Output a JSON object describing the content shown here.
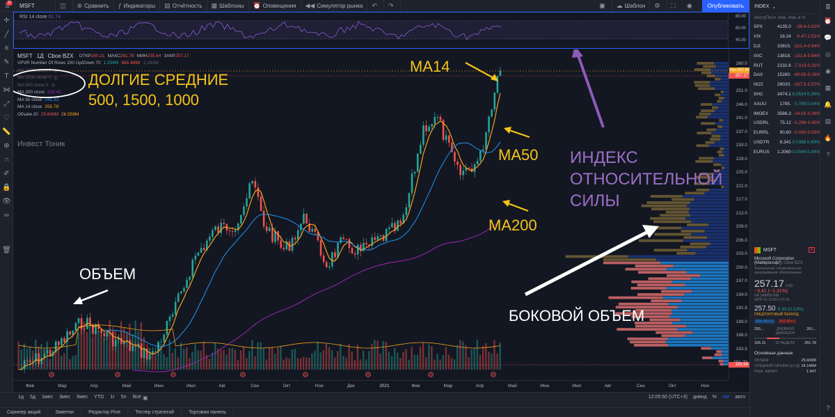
{
  "topbar": {
    "notif_count": "11",
    "symbol": "MSFT",
    "compare": "Сравнить",
    "indicators": "Индикаторы",
    "report": "Отчётность",
    "templates": "Шаблоны",
    "alerts": "Оповещения",
    "replay": "Симулятор рынка",
    "template_name": "Шаблон",
    "publish": "Опубликовать"
  },
  "rsi": {
    "label": "RSI 14 close",
    "value": "61.74",
    "ticks": [
      "80.00",
      "60.00",
      "40.00"
    ]
  },
  "legend": {
    "symbol": "MSFT",
    "interval": "1Д",
    "exchange": "Cboe BZX",
    "ohlc": [
      {
        "k": "ОТКР",
        "v": "260.21"
      },
      {
        "k": "МАКС",
        "v": "261.78"
      },
      {
        "k": "МИН",
        "v": "255.64"
      },
      {
        "k": "ЗАКР",
        "v": "257.17"
      }
    ],
    "vpvr": "VPVR Number Of Rows 100 Up/Down 70",
    "vpvr_values": [
      "1.254M",
      "988.489K",
      "2.243M"
    ],
    "ma_hidden": [
      "MA 1500 close 0",
      "MA 1000 close 0",
      "MA 500 close 0"
    ],
    "ma200": {
      "label": "MA 200 close",
      "value": "219.40"
    },
    "ma50": {
      "label": "MA 50 close",
      "value": "241.33"
    },
    "ma14": {
      "label": "MA 14 close",
      "value": "255.78"
    },
    "volume": {
      "label": "Объём 20",
      "v1": "25.606M",
      "v2": "26.558M"
    }
  },
  "watermark": "Инвест Тоник",
  "annotations": {
    "long_ma_title": "ДОЛГИЕ СРЕДНИЕ",
    "long_ma_values": "500, 1500, 1000",
    "ma14": "MA14",
    "ma50": "MA50",
    "ma200": "MA200",
    "volume": "ОБЪЕМ",
    "side_volume": "БОКОВОЙ ОБЪЕМ",
    "rsi_line1": "ИНДЕКС",
    "rsi_line2": "ОТНОСИТЕЛЬНОЙ",
    "rsi_line3": "СИЛЫ"
  },
  "price_axis": {
    "ticks": [
      "260.0",
      "256.0",
      "251.0",
      "246.0",
      "241.0",
      "237.0",
      "233.0",
      "229.0",
      "225.0",
      "221.0",
      "217.0",
      "213.0",
      "209.0",
      "206.0",
      "203.0",
      "200.0",
      "197.0",
      "194.0",
      "191.5",
      "189.0",
      "186.0",
      "183.5",
      "181.70"
    ],
    "badge_pre": "Пре",
    "badge_pre_value": "257.50",
    "badge_last": "257.17",
    "badge_low": "183.54"
  },
  "time_axis": [
    "Фев",
    "Мар",
    "Апр",
    "Май",
    "Июн",
    "Июл",
    "Авг",
    "Сен",
    "Окт",
    "Ноя",
    "Дек",
    "2021",
    "Фев",
    "Мар",
    "Апр",
    "Май",
    "Июн",
    "Июл",
    "Авг",
    "Сен",
    "Окт",
    "Ноя"
  ],
  "bottombar": {
    "timeframes": [
      "1д",
      "5д",
      "1мес",
      "3мес",
      "6мес",
      "YTD",
      "1г",
      "5л",
      "Всё"
    ],
    "clock": "12:05:50 (UTC+3)",
    "modes": [
      "дивнд",
      "%",
      "лог",
      "авто"
    ],
    "tabs": [
      "Скринер акций",
      "Заметки",
      "Редактор Pine",
      "Тестер стратегий",
      "Торговая панель"
    ]
  },
  "watchlist": {
    "title": "INDEX",
    "columns": "ИнстрПосл.  Изм. Изм. в %",
    "rows": [
      {
        "sym": "SPX",
        "last": "4135.0",
        "chg": "-38.4",
        "pct": "-0.92%",
        "dir": "dn"
      },
      {
        "sym": "VIX",
        "last": "18.24",
        "chg": "-0.47",
        "pct": "-2.51%",
        "dir": "dn"
      },
      {
        "sym": "DJI",
        "last": "33815.",
        "chg": "-321.4",
        "pct": "-0.94%",
        "dir": "dn"
      },
      {
        "sym": "IXIC",
        "last": "13818.",
        "chg": "-131.8",
        "pct": "-0.94%",
        "dir": "dn"
      },
      {
        "sym": "RUT",
        "last": "2232.6",
        "chg": "-7.013",
        "pct": "-0.31%",
        "dir": "dn"
      },
      {
        "sym": "DAX",
        "last": "15280.",
        "chg": "-40.05",
        "pct": "-0.26%",
        "dir": "dn"
      },
      {
        "sym": "NI22",
        "last": "29020.",
        "chg": "-167.5",
        "pct": "-0.57%",
        "dir": "dn"
      },
      {
        "sym": "SHC",
        "last": "3474.1",
        "chg": "9.0524",
        "pct": "0.26%",
        "dir": "up"
      },
      {
        "sym": "XAUU",
        "last": "1785.",
        "chg": "0.785",
        "pct": "0.04%",
        "dir": "up"
      },
      {
        "sym": "IMOEX",
        "last": "3586.3",
        "chg": "-14.01",
        "pct": "-0.39%",
        "dir": "dn"
      },
      {
        "sym": "USDRL",
        "last": "75.12",
        "chg": "-0.298",
        "pct": "-0.40%",
        "dir": "dn"
      },
      {
        "sym": "EURRL",
        "last": "90.60",
        "chg": "-0.030",
        "pct": "-0.03%",
        "dir": "dn"
      },
      {
        "sym": "USDTR",
        "last": "8.341",
        "chg": "0.0358",
        "pct": "0.43%",
        "dir": "up"
      },
      {
        "sym": "EURUS",
        "last": "1.2060",
        "chg": "0.0046",
        "pct": "0.39%",
        "dir": "up"
      }
    ]
  },
  "detail": {
    "symbol": "MSFT",
    "badge": "4",
    "name1": "Microsoft Corporation",
    "name2": "(Майкрософт)",
    "exchange": "Cboe BZX",
    "sector1": "Технологии • Комплексное",
    "sector2": "программное обеспечение",
    "price": "257.17",
    "currency": "USD",
    "change": "−3.41 (−1.31%)",
    "closed": "НА ЗАКРЫТИИ",
    "closed_date": "(АПР 22 19:59 UTC-4)",
    "pre_price": "257.50",
    "pre_change": "0.33 (0.13%)",
    "pre_label": "ПРЕДТОРГОВЫЙ ПЕРИОД",
    "bid": "255.50×11",
    "ask": "262.50×1",
    "day_low": "255...",
    "day_range": "ДНЕВНОЙ ДИАПАЗОН",
    "day_high": "261...",
    "w52_low": "166.11",
    "w52_label": "52 НЕДЕЛИ",
    "w52_high": "261.78",
    "section": "Основные данные",
    "vol_label": "ОБЪЁМ",
    "vol_value": "25.606M",
    "avg_label": "СРЕДНИЙ ОБЪЁМ (10 Д)",
    "avg_value": "24.146M",
    "cap_label": "РЫН. КАПИТ.",
    "cap_value": "1.94T"
  },
  "colors": {
    "bg": "#131722",
    "up": "#26a69a",
    "down": "#ef5350",
    "ma14": "#f7a21b",
    "ma50": "#2196f3",
    "ma200": "#9c27b0",
    "rsi": "#7e57c2",
    "annotation_yellow": "#f5c518",
    "annotation_purple": "#9c6fc6"
  }
}
